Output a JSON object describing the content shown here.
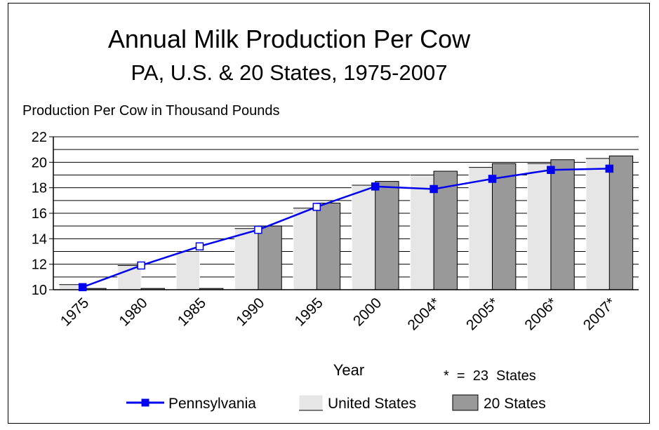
{
  "chart_data": {
    "type": "bar",
    "title": "Annual Milk Production Per Cow",
    "subtitle": "PA, U.S. & 20 States, 1975-2007",
    "ylabel": "Production Per Cow in Thousand Pounds",
    "xlabel": "Year",
    "footnote": "*  =  23  States",
    "ylim": [
      10,
      22
    ],
    "yticks": [
      "10",
      "12",
      "14",
      "16",
      "18",
      "20",
      "22"
    ],
    "grid": true,
    "legend_position": "bottom",
    "categories": [
      "1975",
      "1980",
      "1985",
      "1990",
      "1995",
      "2000",
      "2004*",
      "2005*",
      "2006*",
      "2007*"
    ],
    "series": [
      {
        "name": "Pennsylvania",
        "kind": "line",
        "color": "#0000ee",
        "values": [
          10.2,
          11.9,
          13.4,
          14.7,
          16.5,
          18.1,
          17.9,
          18.7,
          19.4,
          19.5
        ]
      },
      {
        "name": "United States",
        "kind": "bar",
        "color": "#e6e6e6",
        "values": [
          10.4,
          11.9,
          13.0,
          14.8,
          16.4,
          18.2,
          19.0,
          19.6,
          19.9,
          20.3
        ]
      },
      {
        "name": "20 States",
        "kind": "bar",
        "color": "#999999",
        "values": [
          10.1,
          10.1,
          10.1,
          15.0,
          16.8,
          18.5,
          19.3,
          19.9,
          20.2,
          20.5
        ]
      }
    ]
  }
}
